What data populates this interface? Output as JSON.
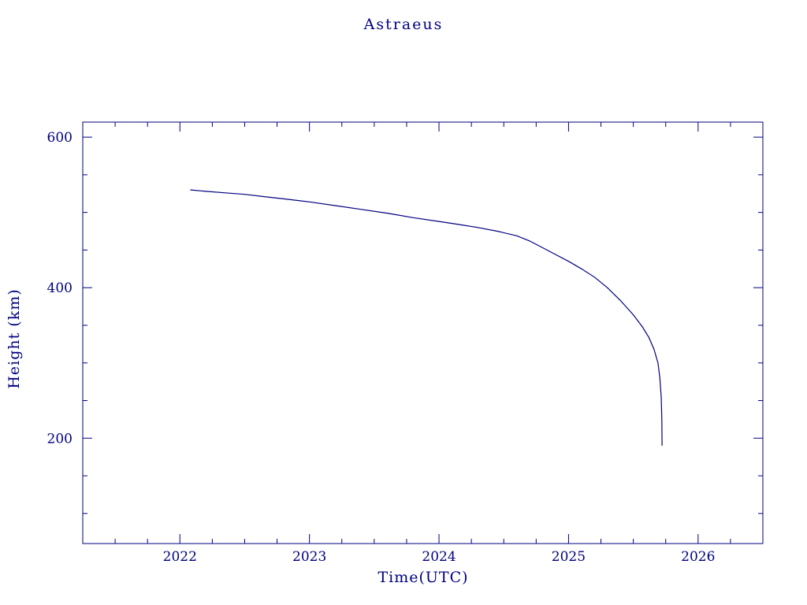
{
  "colors": {
    "axis": "#000080",
    "line": "#000080",
    "background": "#ffffff"
  },
  "chart_data": {
    "type": "line",
    "title": "Astraeus",
    "xlabel": "Time(UTC)",
    "ylabel": "Height (km)",
    "xlim": [
      2021.25,
      2026.5
    ],
    "ylim": [
      60,
      620
    ],
    "grid": false,
    "legend": "none",
    "xticks": {
      "major": [
        2022,
        2023,
        2024,
        2025,
        2026
      ],
      "labels": [
        "2022",
        "2023",
        "2024",
        "2025",
        "2026"
      ],
      "minor_step": 0.25
    },
    "yticks": {
      "major": [
        200,
        400,
        600
      ],
      "labels": [
        "200",
        "400",
        "600"
      ],
      "minor_step": 50
    },
    "axis_color": "#000080",
    "line_color": "#000080",
    "series": [
      {
        "name": "height",
        "points": [
          [
            2022.08,
            530
          ],
          [
            2022.2,
            528
          ],
          [
            2022.35,
            526
          ],
          [
            2022.5,
            524
          ],
          [
            2022.65,
            521
          ],
          [
            2022.8,
            518
          ],
          [
            2023.0,
            514
          ],
          [
            2023.2,
            509
          ],
          [
            2023.4,
            504
          ],
          [
            2023.6,
            499
          ],
          [
            2023.8,
            493
          ],
          [
            2024.0,
            488
          ],
          [
            2024.15,
            484
          ],
          [
            2024.3,
            480
          ],
          [
            2024.45,
            475
          ],
          [
            2024.6,
            469
          ],
          [
            2024.7,
            462
          ],
          [
            2024.8,
            453
          ],
          [
            2024.9,
            444
          ],
          [
            2025.0,
            435
          ],
          [
            2025.1,
            425
          ],
          [
            2025.2,
            414
          ],
          [
            2025.3,
            400
          ],
          [
            2025.4,
            383
          ],
          [
            2025.5,
            364
          ],
          [
            2025.57,
            348
          ],
          [
            2025.62,
            334
          ],
          [
            2025.66,
            318
          ],
          [
            2025.69,
            300
          ],
          [
            2025.705,
            280
          ],
          [
            2025.715,
            255
          ],
          [
            2025.72,
            225
          ],
          [
            2025.722,
            190
          ]
        ]
      }
    ]
  }
}
